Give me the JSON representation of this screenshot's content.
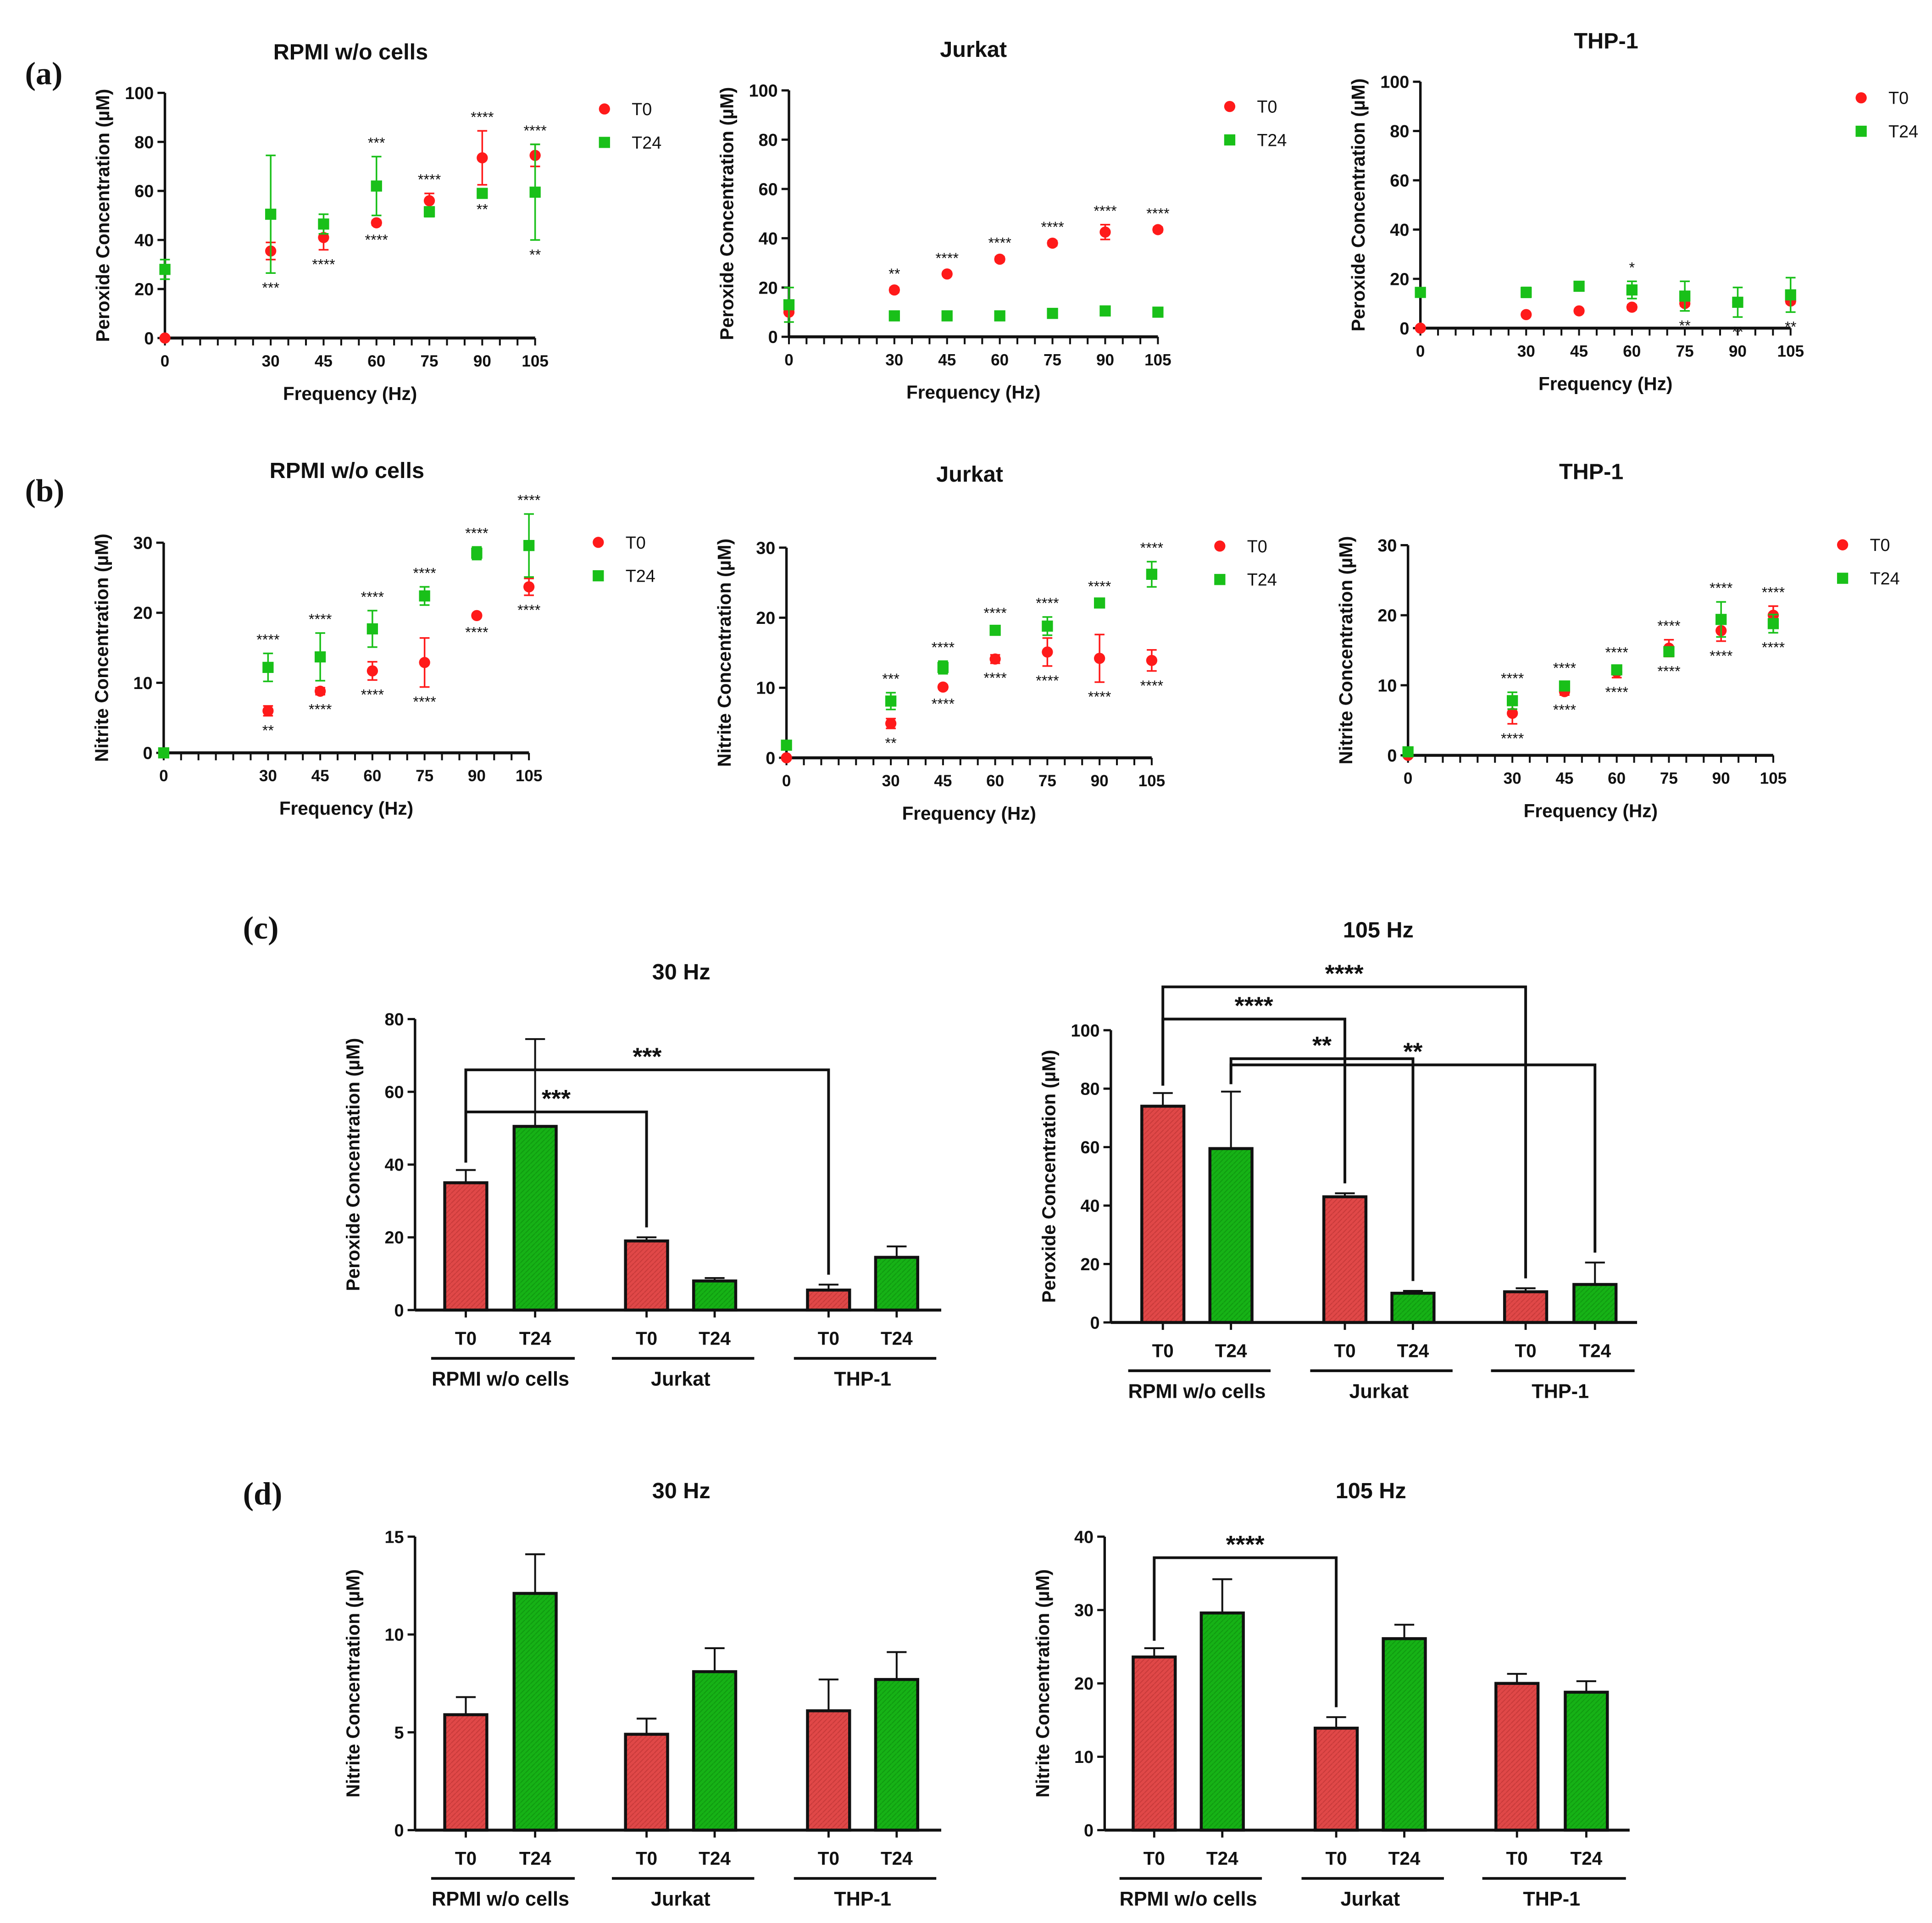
{
  "panels": [
    "(a)",
    "(b)",
    "(c)",
    "(d)"
  ],
  "colors": {
    "T0": "#ff1a1a",
    "T24": "#19c019",
    "bar_T0": "#e04848",
    "bar_T24": "#16b216",
    "axis": "#111111"
  },
  "chart_data": [
    {
      "type": "scatter",
      "title": "RPMI w/o cells",
      "xlabel": "Frequency (Hz)",
      "ylabel": "Peroxide Concentration (µM)",
      "x": [
        0,
        30,
        45,
        60,
        75,
        90,
        105
      ],
      "ylim": [
        0,
        100
      ],
      "yticks": [
        0,
        20,
        40,
        60,
        80,
        100
      ],
      "series": [
        {
          "name": "T0",
          "values": [
            0,
            35.5,
            41,
            47,
            56,
            73.5,
            74.5
          ],
          "errors": [
            0,
            3.5,
            5,
            1,
            3,
            11,
            4.5
          ]
        },
        {
          "name": "T24",
          "values": [
            28,
            50.5,
            46.5,
            62,
            51.5,
            59,
            59.5
          ],
          "errors": [
            4,
            24,
            4,
            12,
            2,
            0.5,
            19.5
          ]
        }
      ],
      "significance": [
        {
          "x": 30,
          "text": "***",
          "position": "below"
        },
        {
          "x": 45,
          "text": "****",
          "position": "below"
        },
        {
          "x": 60,
          "text": "***",
          "position": "above"
        },
        {
          "x": 60,
          "text": "****",
          "position": "below"
        },
        {
          "x": 75,
          "text": "****",
          "position": "above"
        },
        {
          "x": 90,
          "text": "****",
          "position": "above"
        },
        {
          "x": 90,
          "text": "**",
          "position": "below"
        },
        {
          "x": 105,
          "text": "****",
          "position": "above"
        },
        {
          "x": 105,
          "text": "**",
          "position": "below"
        }
      ]
    },
    {
      "type": "scatter",
      "title": "Jurkat",
      "xlabel": "Frequency (Hz)",
      "ylabel": "Peroxide Concentration (µM)",
      "x": [
        0,
        30,
        45,
        60,
        75,
        90,
        105
      ],
      "ylim": [
        0,
        100
      ],
      "yticks": [
        0,
        20,
        40,
        60,
        80,
        100
      ],
      "series": [
        {
          "name": "T0",
          "values": [
            10,
            19,
            25.5,
            31.5,
            38,
            42.5,
            43.5
          ],
          "errors": [
            0,
            1,
            0.8,
            1,
            1,
            3,
            1
          ]
        },
        {
          "name": "T24",
          "values": [
            13,
            8.5,
            8.5,
            8.5,
            9.5,
            10.5,
            10
          ],
          "errors": [
            7,
            1,
            1,
            1,
            1,
            1,
            1
          ]
        }
      ],
      "significance": [
        {
          "x": 30,
          "text": "**",
          "position": "above"
        },
        {
          "x": 45,
          "text": "****",
          "position": "above"
        },
        {
          "x": 60,
          "text": "****",
          "position": "above"
        },
        {
          "x": 75,
          "text": "****",
          "position": "above"
        },
        {
          "x": 90,
          "text": "****",
          "position": "above"
        },
        {
          "x": 105,
          "text": "****",
          "position": "above"
        }
      ]
    },
    {
      "type": "scatter",
      "title": "THP-1",
      "xlabel": "Frequency (Hz)",
      "ylabel": "Peroxide Concentration (µM)",
      "x": [
        0,
        30,
        45,
        60,
        75,
        90,
        105
      ],
      "ylim": [
        0,
        100
      ],
      "yticks": [
        0,
        20,
        40,
        60,
        80,
        100
      ],
      "series": [
        {
          "name": "T0",
          "values": [
            0,
            5.5,
            7,
            8.5,
            10,
            10.5,
            11
          ],
          "errors": [
            0,
            0.8,
            0.8,
            1,
            1,
            1,
            1
          ]
        },
        {
          "name": "T24",
          "values": [
            14.5,
            14.5,
            17,
            15.5,
            13,
            10.5,
            13.5
          ],
          "errors": [
            1,
            2,
            1,
            3.5,
            6,
            6,
            7
          ]
        }
      ],
      "significance": [
        {
          "x": 60,
          "text": "*",
          "position": "above"
        },
        {
          "x": 75,
          "text": "**",
          "position": "below"
        },
        {
          "x": 90,
          "text": "**",
          "position": "below"
        },
        {
          "x": 105,
          "text": "**",
          "position": "below"
        }
      ]
    },
    {
      "type": "scatter",
      "title": "RPMI w/o cells",
      "xlabel": "Frequency (Hz)",
      "ylabel": "Nitrite Concentration (µM)",
      "x": [
        0,
        30,
        45,
        60,
        75,
        90,
        105
      ],
      "ylim": [
        0,
        35
      ],
      "yticks": [
        0,
        10,
        20,
        30
      ],
      "series": [
        {
          "name": "T0",
          "values": [
            0,
            6,
            8.8,
            11.7,
            12.9,
            19.6,
            23.7
          ],
          "errors": [
            0,
            0.7,
            0.5,
            1.3,
            3.5,
            0.3,
            1.2
          ]
        },
        {
          "name": "T24",
          "values": [
            0,
            12.2,
            13.7,
            17.7,
            22.4,
            28.5,
            29.6
          ],
          "errors": [
            0,
            2,
            3.4,
            2.6,
            1.3,
            0.9,
            4.5
          ]
        }
      ],
      "significance": [
        {
          "x": 30,
          "text": "****",
          "position": "above"
        },
        {
          "x": 30,
          "text": "**",
          "position": "below"
        },
        {
          "x": 45,
          "text": "****",
          "position": "above"
        },
        {
          "x": 45,
          "text": "****",
          "position": "below"
        },
        {
          "x": 60,
          "text": "****",
          "position": "above"
        },
        {
          "x": 60,
          "text": "****",
          "position": "below"
        },
        {
          "x": 75,
          "text": "****",
          "position": "above"
        },
        {
          "x": 75,
          "text": "****",
          "position": "below"
        },
        {
          "x": 90,
          "text": "****",
          "position": "above"
        },
        {
          "x": 90,
          "text": "****",
          "position": "below"
        },
        {
          "x": 105,
          "text": "****",
          "position": "above"
        },
        {
          "x": 105,
          "text": "****",
          "position": "below"
        }
      ]
    },
    {
      "type": "scatter",
      "title": "Jurkat",
      "xlabel": "Frequency (Hz)",
      "ylabel": "Nitrite Concentration (µM)",
      "x": [
        0,
        30,
        45,
        60,
        75,
        90,
        105
      ],
      "ylim": [
        0,
        35
      ],
      "yticks": [
        0,
        10,
        20,
        30
      ],
      "series": [
        {
          "name": "T0",
          "values": [
            0,
            4.9,
            10.1,
            14.1,
            15.1,
            14.2,
            13.9
          ],
          "errors": [
            0,
            0.7,
            0.3,
            0.6,
            2,
            3.4,
            1.5
          ]
        },
        {
          "name": "T24",
          "values": [
            1.8,
            8.1,
            12.9,
            18.2,
            18.8,
            22.1,
            26.2
          ],
          "errors": [
            0.3,
            1.2,
            0.9,
            0.5,
            1.3,
            0.4,
            1.8
          ]
        }
      ],
      "significance": [
        {
          "x": 30,
          "text": "***",
          "position": "above"
        },
        {
          "x": 30,
          "text": "**",
          "position": "below"
        },
        {
          "x": 45,
          "text": "****",
          "position": "above"
        },
        {
          "x": 45,
          "text": "****",
          "position": "below"
        },
        {
          "x": 60,
          "text": "****",
          "position": "above"
        },
        {
          "x": 60,
          "text": "****",
          "position": "below"
        },
        {
          "x": 75,
          "text": "****",
          "position": "above"
        },
        {
          "x": 75,
          "text": "****",
          "position": "below"
        },
        {
          "x": 90,
          "text": "****",
          "position": "above"
        },
        {
          "x": 90,
          "text": "****",
          "position": "below"
        },
        {
          "x": 105,
          "text": "****",
          "position": "above"
        },
        {
          "x": 105,
          "text": "****",
          "position": "below"
        }
      ]
    },
    {
      "type": "scatter",
      "title": "THP-1",
      "xlabel": "Frequency (Hz)",
      "ylabel": "Nitrite Concentration (µM)",
      "x": [
        0,
        30,
        45,
        60,
        75,
        90,
        105
      ],
      "ylim": [
        0,
        35
      ],
      "yticks": [
        0,
        10,
        20,
        30
      ],
      "series": [
        {
          "name": "T0",
          "values": [
            0,
            6,
            9.1,
            11.9,
            15.3,
            17.8,
            20
          ],
          "errors": [
            0,
            1.5,
            0.5,
            0.8,
            1.2,
            1.5,
            1.3
          ]
        },
        {
          "name": "T24",
          "values": [
            0.5,
            7.8,
            9.9,
            12.2,
            14.8,
            19.4,
            18.8
          ],
          "errors": [
            0.5,
            1.2,
            0.6,
            0.5,
            0.6,
            2.5,
            1.3
          ]
        }
      ],
      "significance": [
        {
          "x": 30,
          "text": "****",
          "position": "above"
        },
        {
          "x": 30,
          "text": "****",
          "position": "below"
        },
        {
          "x": 45,
          "text": "****",
          "position": "above"
        },
        {
          "x": 45,
          "text": "****",
          "position": "below"
        },
        {
          "x": 60,
          "text": "****",
          "position": "above"
        },
        {
          "x": 60,
          "text": "****",
          "position": "below"
        },
        {
          "x": 75,
          "text": "****",
          "position": "above"
        },
        {
          "x": 75,
          "text": "****",
          "position": "below"
        },
        {
          "x": 90,
          "text": "****",
          "position": "above"
        },
        {
          "x": 90,
          "text": "****",
          "position": "below"
        },
        {
          "x": 105,
          "text": "****",
          "position": "above"
        },
        {
          "x": 105,
          "text": "****",
          "position": "below"
        }
      ]
    },
    {
      "type": "bar",
      "title": "30 Hz",
      "ylabel": "Peroxide Concentration (µM)",
      "ylim": [
        0,
        80
      ],
      "yticks": [
        0,
        20,
        40,
        60,
        80
      ],
      "groups": [
        "RPMI w/o cells",
        "Jurkat",
        "THP-1"
      ],
      "series_labels": [
        "T0",
        "T24"
      ],
      "values": [
        [
          35,
          50.5
        ],
        [
          19,
          8
        ],
        [
          5.5,
          14.5
        ]
      ],
      "errors": [
        [
          3.5,
          24
        ],
        [
          1,
          0.8
        ],
        [
          1.5,
          3
        ]
      ],
      "significance": [
        {
          "from": [
            0,
            0
          ],
          "to": [
            2,
            0
          ],
          "text": "***"
        },
        {
          "from": [
            0,
            0
          ],
          "to": [
            1,
            0
          ],
          "text": "***"
        }
      ]
    },
    {
      "type": "bar",
      "title": "105 Hz",
      "ylabel": "Peroxide Concentration (µM)",
      "ylim": [
        0,
        100
      ],
      "yticks": [
        0,
        20,
        40,
        60,
        80,
        100
      ],
      "groups": [
        "RPMI w/o cells",
        "Jurkat",
        "THP-1"
      ],
      "series_labels": [
        "T0",
        "T24"
      ],
      "values": [
        [
          74,
          59.5
        ],
        [
          43,
          10
        ],
        [
          10.5,
          13
        ]
      ],
      "errors": [
        [
          4.5,
          19.5
        ],
        [
          1.2,
          0.8
        ],
        [
          1.2,
          7.5
        ]
      ],
      "significance": [
        {
          "from": [
            0,
            0
          ],
          "to": [
            2,
            0
          ],
          "text": "****"
        },
        {
          "from": [
            0,
            0
          ],
          "to": [
            1,
            0
          ],
          "text": "****"
        },
        {
          "from": [
            0,
            1
          ],
          "to": [
            1,
            1
          ],
          "text": "**"
        },
        {
          "from": [
            0,
            1
          ],
          "to": [
            2,
            1
          ],
          "text": "**"
        }
      ]
    },
    {
      "type": "bar",
      "title": "30 Hz",
      "ylabel": "Nitrite Concentration (µM)",
      "ylim": [
        0,
        15
      ],
      "yticks": [
        0,
        5,
        10,
        15
      ],
      "groups": [
        "RPMI w/o cells",
        "Jurkat",
        "THP-1"
      ],
      "series_labels": [
        "T0",
        "T24"
      ],
      "values": [
        [
          5.9,
          12.1
        ],
        [
          4.9,
          8.1
        ],
        [
          6.1,
          7.7
        ]
      ],
      "errors": [
        [
          0.9,
          2
        ],
        [
          0.8,
          1.2
        ],
        [
          1.6,
          1.4
        ]
      ],
      "significance": []
    },
    {
      "type": "bar",
      "title": "105 Hz",
      "ylabel": "Nitrite Concentration (µM)",
      "ylim": [
        0,
        40
      ],
      "yticks": [
        0,
        10,
        20,
        30,
        40
      ],
      "groups": [
        "RPMI w/o cells",
        "Jurkat",
        "THP-1"
      ],
      "series_labels": [
        "T0",
        "T24"
      ],
      "values": [
        [
          23.6,
          29.6
        ],
        [
          13.9,
          26.1
        ],
        [
          20,
          18.8
        ]
      ],
      "errors": [
        [
          1.2,
          4.6
        ],
        [
          1.5,
          1.9
        ],
        [
          1.3,
          1.5
        ]
      ],
      "significance": [
        {
          "from": [
            0,
            0
          ],
          "to": [
            1,
            0
          ],
          "text": "****"
        }
      ]
    }
  ]
}
